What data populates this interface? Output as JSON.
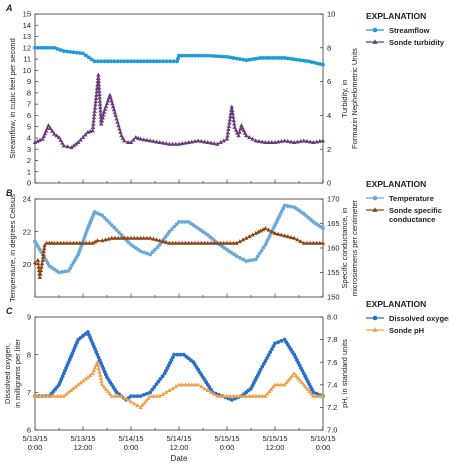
{
  "figure": {
    "x_axis_label": "Date",
    "x_ticks": [
      {
        "x": 0,
        "line1": "5/13/15",
        "line2": "0:00"
      },
      {
        "x": 0.5,
        "line1": "5/13/15",
        "line2": "12:00"
      },
      {
        "x": 1,
        "line1": "5/14/15",
        "line2": "0:00"
      },
      {
        "x": 1.5,
        "line1": "5/14/15",
        "line2": "12:00"
      },
      {
        "x": 2,
        "line1": "5/15/15",
        "line2": "0:00"
      },
      {
        "x": 2.5,
        "line1": "5/15/15",
        "line2": "12:00"
      },
      {
        "x": 3,
        "line1": "5/16/15",
        "line2": "0:00"
      }
    ]
  },
  "panels": [
    {
      "letter": "A",
      "left_axis_label": [
        "Streamflow, in cubic feet per second"
      ],
      "right_axis_label": [
        "Turbidity, in",
        "Formazin Nephelometric Units"
      ],
      "explanation_title": "EXPLANATION",
      "legend": [
        {
          "label": "Streamflow",
          "color": "#1e9ad6",
          "marker": "circle"
        },
        {
          "label": "Sonde turbidity",
          "color": "#6b3a7d",
          "marker": "triangle"
        }
      ]
    },
    {
      "letter": "B",
      "left_axis_label": [
        "Temperature, in degrees Celsius"
      ],
      "right_axis_label": [
        "Specific conductance, in",
        "microsiemens per centimeter"
      ],
      "explanation_title": "EXPLANATION",
      "legend": [
        {
          "label": [
            "Temperature"
          ],
          "color": "#6aa9d8",
          "marker": "circle"
        },
        {
          "label": [
            "Sonde specific",
            "conductance"
          ],
          "color": "#8b4513",
          "marker": "triangle"
        }
      ]
    },
    {
      "letter": "C",
      "left_axis_label": [
        "Dissolved oxygen,",
        "in milligrams per liter"
      ],
      "right_axis_label": [
        "pH, in standard units"
      ],
      "explanation_title": "EXPLANATION",
      "legend": [
        {
          "label": "Dissolved oxygen",
          "color": "#2a6fc9",
          "marker": "circle"
        },
        {
          "label": "Sonde pH",
          "color": "#f0a04b",
          "marker": "triangle"
        }
      ]
    }
  ],
  "chart_data": [
    {
      "type": "line",
      "panel": "A",
      "x_unit": "days since 5/13/15 0:00",
      "xlim": [
        0,
        3
      ],
      "ylim_left": [
        0,
        15
      ],
      "yticks_left": [
        0,
        1,
        2,
        3,
        4,
        5,
        6,
        7,
        8,
        9,
        10,
        11,
        12,
        13,
        14,
        15
      ],
      "ylim_right": [
        0,
        10
      ],
      "yticks_right": [
        0,
        2,
        4,
        6,
        8,
        10
      ],
      "series": [
        {
          "name": "Streamflow",
          "axis": "left",
          "color": "#1e9ad6",
          "x": [
            0,
            0.2,
            0.3,
            0.5,
            0.62,
            1.0,
            1.3,
            1.48,
            1.5,
            1.8,
            2.0,
            2.2,
            2.35,
            2.6,
            2.85,
            3.0
          ],
          "y": [
            12.0,
            12.0,
            11.7,
            11.5,
            10.8,
            10.8,
            10.8,
            10.8,
            11.3,
            11.3,
            11.2,
            10.9,
            11.1,
            11.1,
            10.8,
            10.5
          ]
        },
        {
          "name": "Sonde turbidity",
          "axis": "right",
          "color": "#6b3a7d",
          "x": [
            0,
            0.08,
            0.14,
            0.2,
            0.25,
            0.3,
            0.38,
            0.45,
            0.5,
            0.55,
            0.6,
            0.64,
            0.66,
            0.69,
            0.72,
            0.78,
            0.84,
            0.88,
            0.9,
            0.93,
            0.97,
            1.0,
            1.05,
            1.1,
            1.2,
            1.3,
            1.4,
            1.5,
            1.6,
            1.7,
            1.8,
            1.9,
            2.0,
            2.05,
            2.08,
            2.12,
            2.15,
            2.2,
            2.3,
            2.4,
            2.5,
            2.6,
            2.7,
            2.8,
            2.9,
            3.0
          ],
          "y": [
            2.4,
            2.6,
            3.4,
            2.9,
            2.7,
            2.2,
            2.1,
            2.4,
            2.7,
            3.0,
            3.1,
            5.2,
            6.4,
            3.5,
            4.2,
            5.2,
            4.0,
            3.2,
            2.8,
            2.5,
            2.4,
            2.4,
            2.7,
            2.6,
            2.5,
            2.4,
            2.3,
            2.3,
            2.4,
            2.5,
            2.4,
            2.3,
            2.6,
            4.5,
            3.3,
            2.8,
            3.4,
            2.8,
            2.5,
            2.4,
            2.4,
            2.5,
            2.4,
            2.5,
            2.4,
            2.5
          ]
        }
      ]
    },
    {
      "type": "line",
      "panel": "B",
      "x_unit": "days since 5/13/15 0:00",
      "xlim": [
        0,
        3
      ],
      "ylim_left": [
        18,
        24
      ],
      "yticks_left": [
        20,
        22,
        24
      ],
      "ylim_right": [
        150,
        170
      ],
      "yticks_right": [
        150,
        155,
        160,
        165,
        170
      ],
      "series": [
        {
          "name": "Temperature",
          "axis": "left",
          "color": "#6aa9d8",
          "x": [
            0,
            0.08,
            0.15,
            0.25,
            0.35,
            0.45,
            0.55,
            0.62,
            0.7,
            0.8,
            0.9,
            1.0,
            1.1,
            1.2,
            1.3,
            1.4,
            1.5,
            1.6,
            1.7,
            1.8,
            1.9,
            2.0,
            2.1,
            2.2,
            2.3,
            2.4,
            2.5,
            2.6,
            2.7,
            2.8,
            2.9,
            3.0
          ],
          "y": [
            21.4,
            20.6,
            19.9,
            19.5,
            19.6,
            20.6,
            22.2,
            23.2,
            23.0,
            22.4,
            21.8,
            21.2,
            20.8,
            20.6,
            21.2,
            22.0,
            22.6,
            22.6,
            22.2,
            21.8,
            21.3,
            20.9,
            20.5,
            20.2,
            20.3,
            21.2,
            22.4,
            23.6,
            23.5,
            23.1,
            22.6,
            22.2
          ]
        },
        {
          "name": "Sonde specific conductance",
          "axis": "right",
          "color": "#8b4513",
          "x": [
            0,
            0.03,
            0.05,
            0.08,
            0.1,
            0.12,
            0.15,
            0.2,
            0.3,
            0.4,
            0.5,
            0.6,
            0.65,
            0.7,
            0.8,
            0.9,
            1.0,
            1.1,
            1.2,
            1.3,
            1.4,
            1.5,
            1.6,
            1.7,
            1.8,
            1.9,
            2.0,
            2.1,
            2.2,
            2.3,
            2.35,
            2.4,
            2.5,
            2.6,
            2.7,
            2.8,
            2.9,
            3.0
          ],
          "y": [
            157.0,
            157.5,
            154.0,
            157.5,
            160.5,
            161.0,
            161.0,
            161.0,
            161.0,
            161.0,
            161.0,
            161.0,
            161.5,
            161.5,
            162.0,
            162.0,
            162.0,
            162.0,
            162.0,
            161.5,
            161.0,
            161.0,
            161.0,
            161.0,
            161.0,
            161.0,
            161.0,
            161.0,
            162.0,
            163.0,
            163.5,
            164.0,
            163.0,
            162.5,
            162.0,
            161.0,
            161.0,
            161.0
          ]
        }
      ]
    },
    {
      "type": "line",
      "panel": "C",
      "x_unit": "days since 5/13/15 0:00",
      "xlim": [
        0,
        3
      ],
      "ylim_left": [
        6,
        9
      ],
      "yticks_left": [
        6,
        7,
        8,
        9
      ],
      "ylim_right": [
        7.0,
        8.0
      ],
      "yticks_right": [
        7.0,
        7.2,
        7.4,
        7.6,
        7.8,
        8.0
      ],
      "series": [
        {
          "name": "Dissolved oxygen",
          "axis": "left",
          "color": "#2a6fc9",
          "x": [
            0,
            0.15,
            0.25,
            0.35,
            0.45,
            0.55,
            0.65,
            0.75,
            0.85,
            0.9,
            0.95,
            1.0,
            1.1,
            1.2,
            1.35,
            1.45,
            1.55,
            1.65,
            1.75,
            1.85,
            1.95,
            2.05,
            2.15,
            2.25,
            2.35,
            2.5,
            2.6,
            2.7,
            2.8,
            2.9,
            3.0
          ],
          "y": [
            6.9,
            6.9,
            7.2,
            7.8,
            8.4,
            8.6,
            8.0,
            7.4,
            7.0,
            6.9,
            6.8,
            6.9,
            6.9,
            7.0,
            7.5,
            8.0,
            8.0,
            7.8,
            7.4,
            7.0,
            6.9,
            6.8,
            6.9,
            7.1,
            7.6,
            8.3,
            8.4,
            8.0,
            7.5,
            7.0,
            6.9
          ]
        },
        {
          "name": "Sonde pH",
          "axis": "right",
          "color": "#f0a04b",
          "x": [
            0,
            0.2,
            0.3,
            0.45,
            0.6,
            0.65,
            0.7,
            0.8,
            0.9,
            1.0,
            1.1,
            1.2,
            1.3,
            1.4,
            1.5,
            1.6,
            1.7,
            1.8,
            1.9,
            2.0,
            2.1,
            2.2,
            2.3,
            2.4,
            2.5,
            2.6,
            2.7,
            2.8,
            2.9,
            3.0
          ],
          "y": [
            7.3,
            7.3,
            7.3,
            7.4,
            7.5,
            7.6,
            7.4,
            7.3,
            7.3,
            7.25,
            7.2,
            7.3,
            7.3,
            7.35,
            7.4,
            7.4,
            7.4,
            7.35,
            7.3,
            7.3,
            7.3,
            7.3,
            7.3,
            7.3,
            7.4,
            7.4,
            7.5,
            7.4,
            7.3,
            7.3
          ]
        }
      ]
    }
  ]
}
